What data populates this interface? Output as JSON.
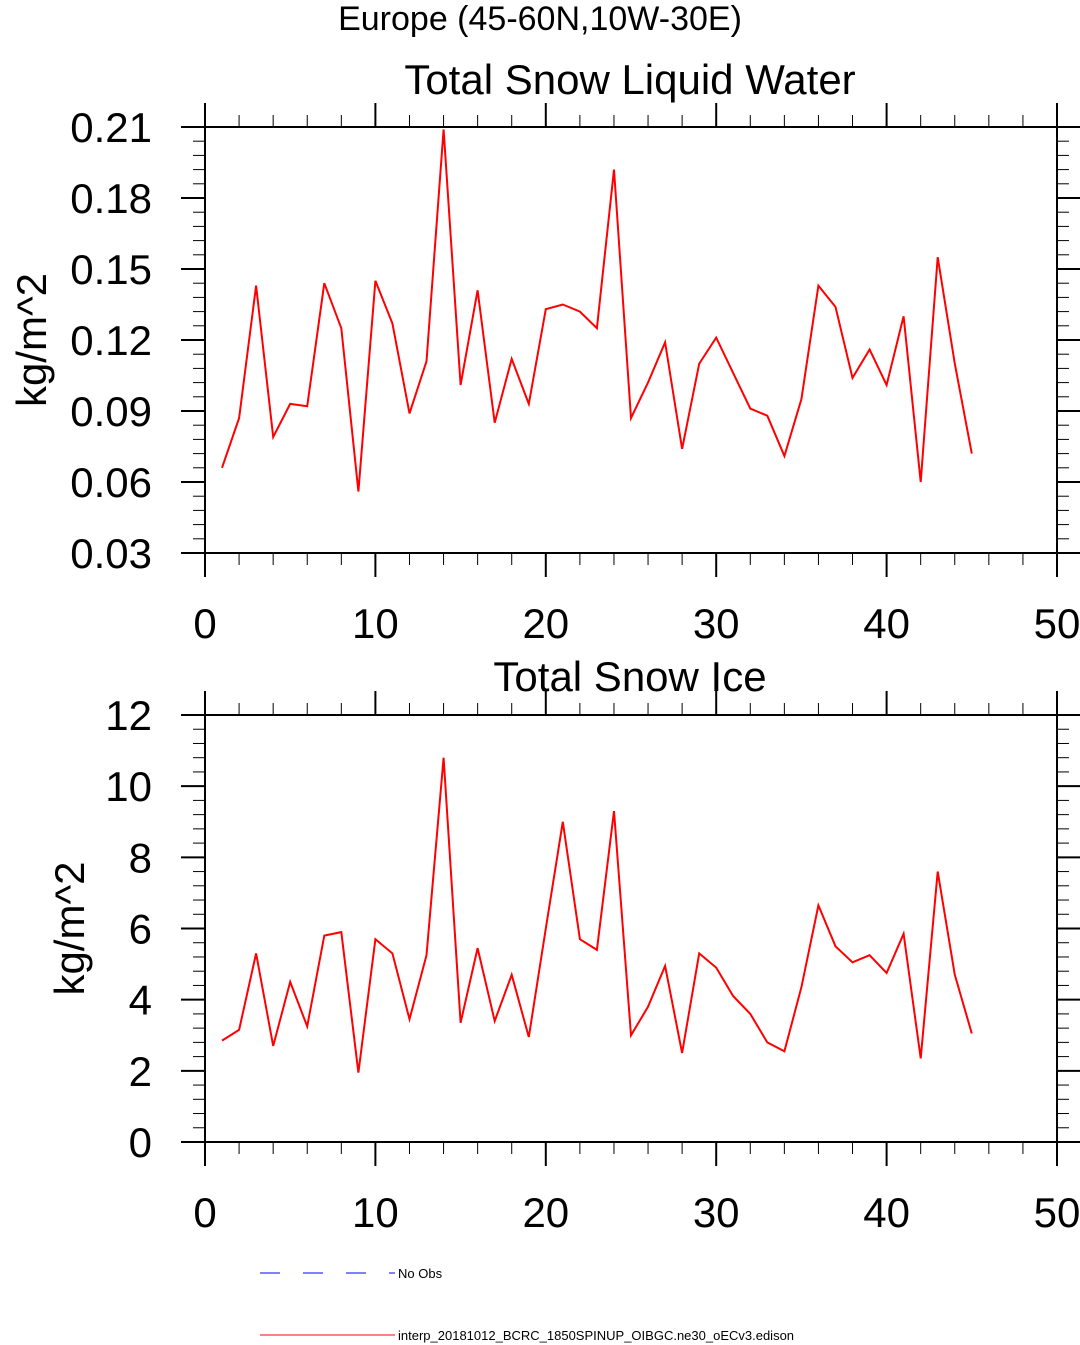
{
  "region_title": "Europe (45-60N,10W-30E)",
  "colors": {
    "model_line": "#ff0000",
    "obs_line": "#0000ff",
    "axes": "#000000"
  },
  "legend": [
    {
      "label": "No Obs",
      "style": "dashed",
      "color": "#0000ff"
    },
    {
      "label": "interp_20181012_BCRC_1850SPINUP_OIBGC.ne30_oECv3.edison",
      "style": "solid",
      "color": "#ff0000"
    }
  ],
  "chart_data": [
    {
      "type": "line",
      "title": "Total Snow Liquid Water",
      "xlabel": "",
      "ylabel": "kg/m^2",
      "xlim": [
        0,
        50
      ],
      "ylim": [
        0.03,
        0.21
      ],
      "xticks": [
        "0",
        "10",
        "20",
        "30",
        "40",
        "50"
      ],
      "yticks": [
        "0.03",
        "0.06",
        "0.09",
        "0.12",
        "0.15",
        "0.18",
        "0.21"
      ],
      "x": [
        1,
        2,
        3,
        4,
        5,
        6,
        7,
        8,
        9,
        10,
        11,
        12,
        13,
        14,
        15,
        16,
        17,
        18,
        19,
        20,
        21,
        22,
        23,
        24,
        25,
        26,
        27,
        28,
        29,
        30,
        31,
        32,
        33,
        34,
        35,
        36,
        37,
        38,
        39,
        40,
        41,
        42,
        43,
        44,
        45
      ],
      "series": [
        {
          "values": [
            0.066,
            0.087,
            0.143,
            0.079,
            0.093,
            0.092,
            0.144,
            0.125,
            0.056,
            0.145,
            0.127,
            0.089,
            0.111,
            0.209,
            0.101,
            0.141,
            0.085,
            0.112,
            0.093,
            0.133,
            0.135,
            0.132,
            0.125,
            0.192,
            0.087,
            0.102,
            0.119,
            0.074,
            0.11,
            0.121,
            0.106,
            0.091,
            0.088,
            0.071,
            0.095,
            0.143,
            0.134,
            0.104,
            0.116,
            0.101,
            0.13,
            0.06,
            0.155,
            0.11,
            0.072
          ]
        }
      ]
    },
    {
      "type": "line",
      "title": "Total Snow Ice",
      "xlabel": "",
      "ylabel": "kg/m^2",
      "xlim": [
        0,
        50
      ],
      "ylim": [
        0,
        12
      ],
      "xticks": [
        "0",
        "10",
        "20",
        "30",
        "40",
        "50"
      ],
      "yticks": [
        "0",
        "2",
        "4",
        "6",
        "8",
        "10",
        "12"
      ],
      "x": [
        1,
        2,
        3,
        4,
        5,
        6,
        7,
        8,
        9,
        10,
        11,
        12,
        13,
        14,
        15,
        16,
        17,
        18,
        19,
        20,
        21,
        22,
        23,
        24,
        25,
        26,
        27,
        28,
        29,
        30,
        31,
        32,
        33,
        34,
        35,
        36,
        37,
        38,
        39,
        40,
        41,
        42,
        43,
        44,
        45
      ],
      "series": [
        {
          "values": [
            2.85,
            3.15,
            5.3,
            2.7,
            4.5,
            3.25,
            5.8,
            5.9,
            1.95,
            5.7,
            5.3,
            3.45,
            5.25,
            10.8,
            3.35,
            5.45,
            3.4,
            4.7,
            2.95,
            6.0,
            9.0,
            5.7,
            5.4,
            9.3,
            3.0,
            3.8,
            4.95,
            2.5,
            5.3,
            4.9,
            4.1,
            3.6,
            2.8,
            2.55,
            4.35,
            6.65,
            5.5,
            5.05,
            5.25,
            4.75,
            5.85,
            2.35,
            7.6,
            4.7,
            3.05
          ]
        }
      ]
    }
  ]
}
